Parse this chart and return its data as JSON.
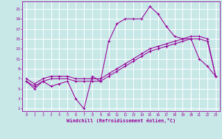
{
  "xlabel": "Windchill (Refroidissement éolien,°C)",
  "background_color": "#c8e8e8",
  "line_color": "#990099",
  "grid_color": "#ffffff",
  "xlim": [
    -0.5,
    23.5
  ],
  "ylim": [
    0.5,
    22.5
  ],
  "xticks": [
    0,
    1,
    2,
    3,
    4,
    5,
    6,
    7,
    8,
    9,
    10,
    11,
    12,
    13,
    14,
    15,
    16,
    17,
    18,
    19,
    20,
    21,
    22,
    23
  ],
  "yticks": [
    1,
    3,
    5,
    7,
    9,
    11,
    13,
    15,
    17,
    19,
    21
  ],
  "hours": [
    0,
    1,
    2,
    3,
    4,
    5,
    6,
    7,
    8,
    9,
    10,
    11,
    12,
    13,
    14,
    15,
    16,
    17,
    18,
    19,
    20,
    21,
    22,
    23
  ],
  "line1": [
    6.5,
    5.0,
    6.5,
    5.5,
    6.0,
    6.5,
    3.0,
    1.0,
    7.5,
    6.5,
    14.5,
    18.0,
    19.0,
    19.0,
    19.0,
    21.5,
    20.0,
    17.5,
    15.5,
    15.0,
    15.0,
    11.0,
    9.5,
    7.5
  ],
  "line2": [
    6.5,
    5.5,
    6.5,
    7.0,
    7.0,
    7.0,
    6.5,
    6.5,
    6.5,
    6.5,
    7.5,
    8.5,
    9.5,
    10.5,
    11.5,
    12.5,
    13.0,
    13.5,
    14.0,
    14.5,
    15.0,
    15.0,
    14.5,
    7.5
  ],
  "line3": [
    7.0,
    6.0,
    7.0,
    7.5,
    7.5,
    7.5,
    7.0,
    7.0,
    7.0,
    7.0,
    8.0,
    9.0,
    10.0,
    11.0,
    12.0,
    13.0,
    13.5,
    14.0,
    14.5,
    15.0,
    15.5,
    15.5,
    15.0,
    7.5
  ]
}
